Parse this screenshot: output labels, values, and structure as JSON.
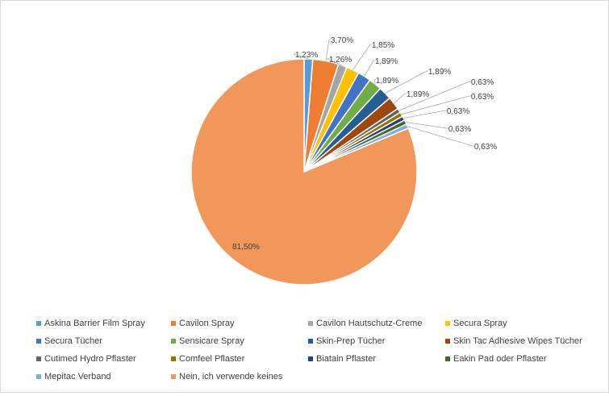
{
  "chart_data": {
    "type": "pie",
    "title": "",
    "slices": [
      {
        "label": "Askina Barrier Film Spray",
        "value": 1.23,
        "display": "1,23%",
        "color": "#5b9bd5"
      },
      {
        "label": "Cavilon Spray",
        "value": 3.7,
        "display": "3,70%",
        "color": "#ed7d31"
      },
      {
        "label": "Cavilon Hautschutz-Creme",
        "value": 1.26,
        "display": "1,26%",
        "color": "#a5a5a5"
      },
      {
        "label": "Secura Spray",
        "value": 1.85,
        "display": "1,85%",
        "color": "#ffc000"
      },
      {
        "label": "Secura Tücher",
        "value": 1.89,
        "display": "1,89%",
        "color": "#4472c4"
      },
      {
        "label": "Sensicare Spray",
        "value": 1.89,
        "display": "1,89%",
        "color": "#70ad47"
      },
      {
        "label": "Skin-Prep Tücher",
        "value": 1.89,
        "display": "1,89%",
        "color": "#255e91"
      },
      {
        "label": "Skin Tac Adhesive Wipes Tücher",
        "value": 1.89,
        "display": "1,89%",
        "color": "#9e480e"
      },
      {
        "label": "Cutimed Hydro Pflaster",
        "value": 0.63,
        "display": "0,63%",
        "color": "#636363"
      },
      {
        "label": "Comfeel Pflaster",
        "value": 0.63,
        "display": "0,63%",
        "color": "#997300"
      },
      {
        "label": "Biatain Pflaster",
        "value": 0.63,
        "display": "0,63%",
        "color": "#264478"
      },
      {
        "label": "Eakin Pad oder Pflaster",
        "value": 0.63,
        "display": "0,63%",
        "color": "#43682b"
      },
      {
        "label": "Mepitac Verband",
        "value": 0.63,
        "display": "0,63%",
        "color": "#7cafdd"
      },
      {
        "label": "Nein, ich verwende keines",
        "value": 81.5,
        "display": "81,50%",
        "color": "#f1975a"
      }
    ],
    "legend_position": "bottom"
  }
}
